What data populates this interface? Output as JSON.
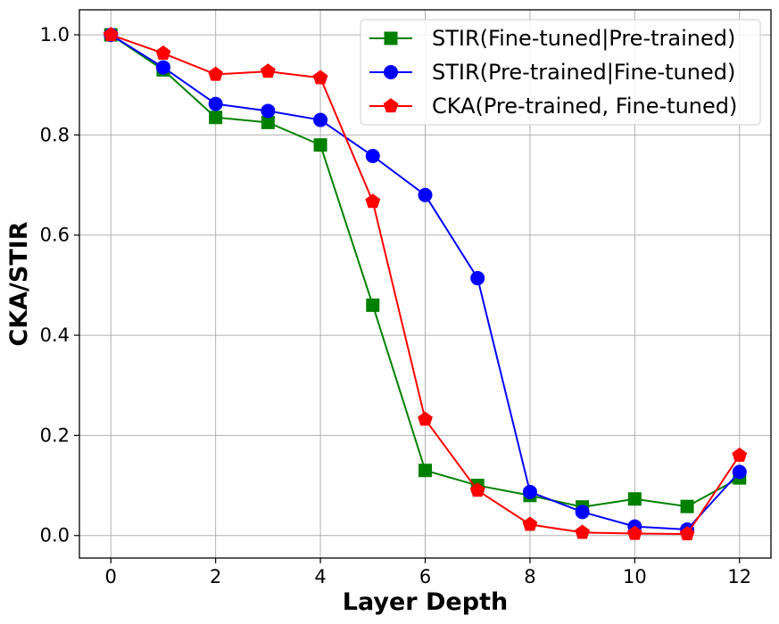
{
  "chart_data": {
    "type": "line",
    "title": "",
    "xlabel": "Layer Depth",
    "ylabel": "CKA/STIR",
    "xlim": [
      -0.6,
      12.6
    ],
    "ylim": [
      -0.045,
      1.05
    ],
    "xticks": [
      "0",
      "2",
      "4",
      "6",
      "8",
      "10",
      "12"
    ],
    "yticks": [
      "0.0",
      "0.2",
      "0.4",
      "0.6",
      "0.8",
      "1.0"
    ],
    "grid": true,
    "legend_position": "top-right",
    "x": [
      0,
      1,
      2,
      3,
      4,
      5,
      6,
      7,
      8,
      9,
      10,
      11,
      12
    ],
    "series": [
      {
        "name": "STIR(Fine-tuned|Pre-trained)",
        "color": "#008000",
        "marker": "square",
        "values": [
          1.0,
          0.93,
          0.835,
          0.825,
          0.78,
          0.46,
          0.13,
          0.1,
          0.08,
          0.057,
          0.073,
          0.058,
          0.115
        ]
      },
      {
        "name": "STIR(Pre-trained|Fine-tuned)",
        "color": "#0000ff",
        "marker": "circle",
        "values": [
          1.0,
          0.935,
          0.862,
          0.848,
          0.83,
          0.758,
          0.68,
          0.514,
          0.087,
          0.047,
          0.018,
          0.012,
          0.127
        ]
      },
      {
        "name": "CKA(Pre-trained, Fine-tuned)",
        "color": "#ff0000",
        "marker": "pentagon",
        "values": [
          1.0,
          0.963,
          0.921,
          0.927,
          0.914,
          0.667,
          0.232,
          0.09,
          0.022,
          0.006,
          0.004,
          0.003,
          0.16
        ]
      }
    ]
  }
}
